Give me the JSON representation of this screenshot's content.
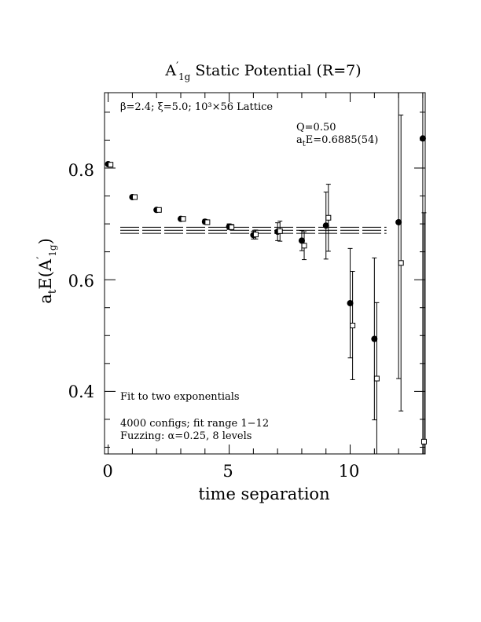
{
  "chart_data": {
    "type": "scatter",
    "title_main": "A",
    "title_prime": "′",
    "title_sub": "1g",
    "title_rest": " Static Potential (R=7)",
    "xlabel": "time separation",
    "ylabel_main": "a",
    "ylabel_sub_t": "t",
    "ylabel_mid": "E(A",
    "ylabel_prime": "′",
    "ylabel_sub_1g": "1g",
    "ylabel_end": ")",
    "xlim": [
      -0.15,
      13.1
    ],
    "ylim": [
      0.288,
      0.935
    ],
    "xticks": [
      0,
      5,
      10
    ],
    "xtick_labels": [
      "0",
      "5",
      "10"
    ],
    "yticks": [
      0.4,
      0.6,
      0.8
    ],
    "ytick_labels": [
      "0.4",
      "0.6",
      "0.8"
    ],
    "grid": false,
    "annotations": {
      "lattice": "β=2.4; ξ=5.0; 10³×56 Lattice",
      "q_value": "Q=0.50",
      "energy_main": "a",
      "energy_sub": "t",
      "energy_rest": "E=0.6885(54)",
      "fit_type": "Fit to two exponentials",
      "configs": "4000 configs; fit range 1−12",
      "fuzzing": "Fuzzing: α=0.25, 8 levels"
    },
    "fit": {
      "value": 0.6885,
      "error": 0.0054,
      "x_range": [
        0.5,
        11.5
      ]
    },
    "series": [
      {
        "marker": "filled-circle",
        "x": [
          0,
          1,
          2,
          3,
          4,
          5,
          6,
          7,
          8,
          9,
          10,
          11,
          12,
          13
        ],
        "y": [
          0.807,
          0.748,
          0.725,
          0.709,
          0.704,
          0.695,
          0.68,
          0.686,
          0.67,
          0.697,
          0.558,
          0.494,
          0.703,
          0.853
        ],
        "err": [
          0.002,
          0.003,
          0.003,
          0.003,
          0.004,
          0.005,
          0.007,
          0.016,
          0.018,
          0.06,
          0.098,
          0.145,
          0.28,
          0.62
        ]
      },
      {
        "marker": "open-square",
        "x": [
          0.1,
          1.1,
          2.1,
          3.1,
          4.1,
          5.1,
          6.1,
          7.1,
          8.1,
          9.1,
          10.1,
          11.1,
          12.1,
          13.05
        ],
        "y": [
          0.806,
          0.748,
          0.725,
          0.709,
          0.703,
          0.694,
          0.681,
          0.687,
          0.661,
          0.711,
          0.518,
          0.423,
          0.63,
          0.31
        ],
        "err": [
          0.002,
          0.003,
          0.003,
          0.003,
          0.004,
          0.005,
          0.008,
          0.018,
          0.025,
          0.06,
          0.097,
          0.136,
          0.265,
          0.41
        ]
      }
    ]
  }
}
